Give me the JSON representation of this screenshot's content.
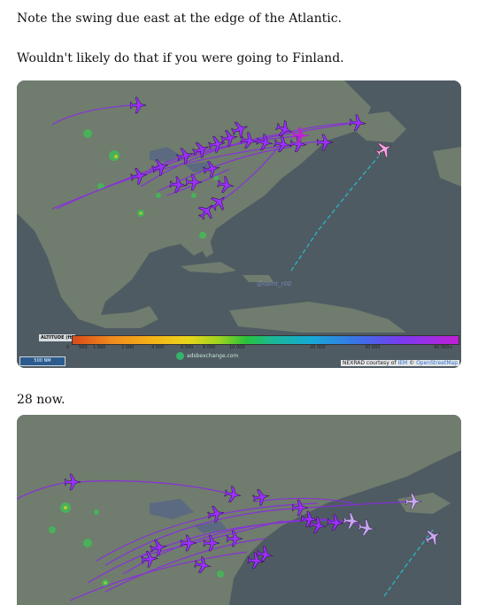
{
  "post": {
    "line1": "Note the swing due east at the edge of the Atlantic.",
    "line2": "Wouldn't likely do that if you were going to Finland.",
    "line3": "28 now."
  },
  "map1": {
    "altitude_label": "ALTITUDE (ft)",
    "altitude_ticks": [
      "0",
      "500",
      "1 000",
      "2 000",
      "4 000",
      "6 000",
      "8 000",
      "10 000",
      "20 000",
      "30 000",
      "40 000+"
    ],
    "scale_label": "500 NM",
    "logo_text": "adsbexchange.com",
    "credit_text": "NEXRAD courtesy of",
    "credit_link": "IEM",
    "credit_link2": "OpenStreetMap",
    "watermark": "@osint_r00"
  },
  "colors": {
    "ocean": "#4f5b62",
    "land": "#6f7c6e",
    "track_purple": "#8a2be2",
    "plane_purple": "#9b30ff",
    "plane_pink": "#f3a6e0"
  }
}
